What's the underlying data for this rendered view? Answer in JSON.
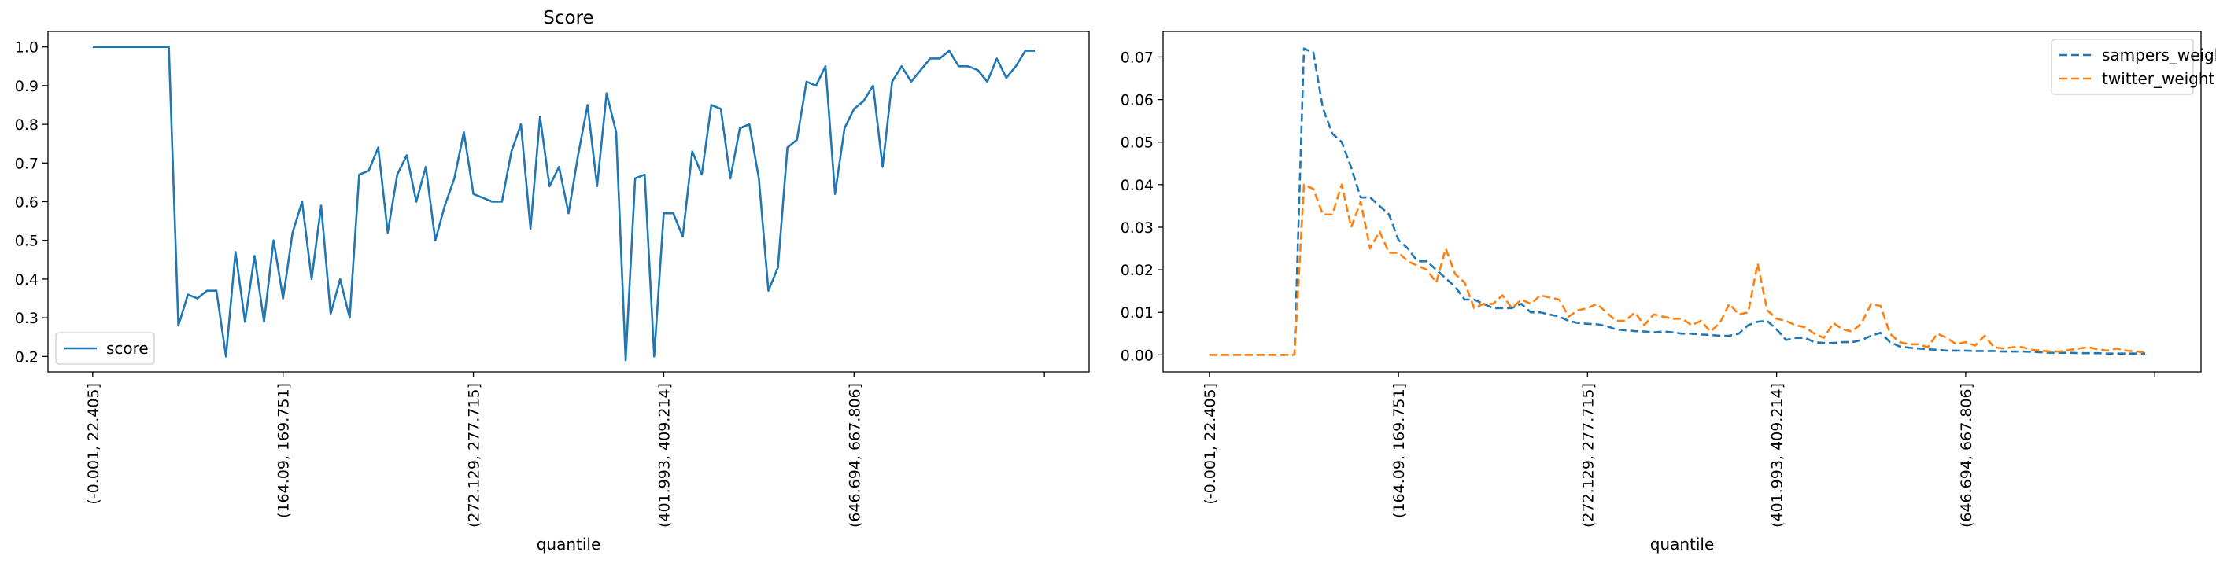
{
  "chart_data": [
    {
      "type": "line",
      "title": "Score",
      "xlabel": "quantile",
      "ylabel": "",
      "x_tick_labels": [
        "(-0.001, 22.405]",
        "(164.09, 169.751]",
        "(272.129, 277.715]",
        "(401.993, 409.214]",
        "(646.694, 667.806]",
        ""
      ],
      "x_tick_positions": [
        0,
        20,
        40,
        60,
        80,
        100
      ],
      "xlim": [
        -4.7,
        104.7
      ],
      "ylim": [
        0.16,
        1.04
      ],
      "y_ticks": [
        0.2,
        0.3,
        0.4,
        0.5,
        0.6,
        0.7,
        0.8,
        0.9,
        1.0
      ],
      "y_tick_labels": [
        "0.2",
        "0.3",
        "0.4",
        "0.5",
        "0.6",
        "0.7",
        "0.8",
        "0.9",
        "1.0"
      ],
      "legend_position": "lower-left",
      "series": [
        {
          "name": "score",
          "color": "#1f77b4",
          "style": "solid",
          "values": [
            1.0,
            1.0,
            1.0,
            1.0,
            1.0,
            1.0,
            1.0,
            1.0,
            1.0,
            0.28,
            0.36,
            0.35,
            0.37,
            0.37,
            0.2,
            0.47,
            0.29,
            0.46,
            0.29,
            0.5,
            0.35,
            0.52,
            0.6,
            0.4,
            0.59,
            0.31,
            0.4,
            0.3,
            0.67,
            0.68,
            0.74,
            0.52,
            0.67,
            0.72,
            0.6,
            0.69,
            0.5,
            0.59,
            0.66,
            0.78,
            0.62,
            0.61,
            0.6,
            0.6,
            0.73,
            0.8,
            0.53,
            0.82,
            0.64,
            0.69,
            0.57,
            0.72,
            0.85,
            0.64,
            0.88,
            0.78,
            0.19,
            0.66,
            0.67,
            0.2,
            0.57,
            0.57,
            0.51,
            0.73,
            0.67,
            0.85,
            0.84,
            0.66,
            0.79,
            0.8,
            0.66,
            0.37,
            0.43,
            0.74,
            0.76,
            0.91,
            0.9,
            0.95,
            0.62,
            0.79,
            0.84,
            0.86,
            0.9,
            0.69,
            0.91,
            0.95,
            0.91,
            0.94,
            0.97,
            0.97,
            0.99,
            0.95,
            0.95,
            0.94,
            0.91,
            0.97,
            0.92,
            0.95,
            0.99,
            0.99
          ]
        }
      ]
    },
    {
      "type": "line",
      "title": "",
      "xlabel": "quantile",
      "ylabel": "",
      "x_tick_labels": [
        "(-0.001, 22.405]",
        "(164.09, 169.751]",
        "(272.129, 277.715]",
        "(401.993, 409.214]",
        "(646.694, 667.806]",
        ""
      ],
      "x_tick_positions": [
        0,
        20,
        40,
        60,
        80,
        100
      ],
      "xlim": [
        -4.9,
        104.9
      ],
      "ylim": [
        -0.004,
        0.076
      ],
      "y_ticks": [
        0.0,
        0.01,
        0.02,
        0.03,
        0.04,
        0.05,
        0.06,
        0.07
      ],
      "y_tick_labels": [
        "0.00",
        "0.01",
        "0.02",
        "0.03",
        "0.04",
        "0.05",
        "0.06",
        "0.07"
      ],
      "legend_position": "upper-right",
      "series": [
        {
          "name": "sampers_weight",
          "color": "#1f77b4",
          "style": "dashed",
          "values": [
            0,
            0,
            0,
            0,
            0,
            0,
            0,
            0,
            0,
            0,
            0.072,
            0.071,
            0.058,
            0.052,
            0.05,
            0.044,
            0.037,
            0.037,
            0.035,
            0.033,
            0.027,
            0.025,
            0.022,
            0.022,
            0.02,
            0.018,
            0.016,
            0.013,
            0.013,
            0.012,
            0.011,
            0.011,
            0.011,
            0.012,
            0.01,
            0.01,
            0.0095,
            0.009,
            0.008,
            0.0075,
            0.0073,
            0.0072,
            0.0068,
            0.006,
            0.0058,
            0.0056,
            0.0055,
            0.0053,
            0.0055,
            0.0053,
            0.005,
            0.005,
            0.0048,
            0.0047,
            0.0045,
            0.0045,
            0.005,
            0.007,
            0.0078,
            0.008,
            0.006,
            0.0035,
            0.004,
            0.004,
            0.003,
            0.0028,
            0.0028,
            0.003,
            0.003,
            0.0035,
            0.0045,
            0.0052,
            0.003,
            0.002,
            0.0017,
            0.0015,
            0.0013,
            0.0012,
            0.001,
            0.001,
            0.001,
            0.0009,
            0.0009,
            0.0009,
            0.0008,
            0.0008,
            0.0008,
            0.0007,
            0.0006,
            0.0005,
            0.0005,
            0.0005,
            0.0004,
            0.0004,
            0.0004,
            0.0003,
            0.0003,
            0.0003,
            0.0003,
            0.0003
          ]
        },
        {
          "name": "twitter_weight",
          "color": "#ff7f0e",
          "style": "dashed",
          "values": [
            0,
            0,
            0,
            0,
            0,
            0,
            0,
            0,
            0,
            0,
            0.04,
            0.039,
            0.033,
            0.033,
            0.04,
            0.03,
            0.036,
            0.025,
            0.029,
            0.024,
            0.024,
            0.022,
            0.021,
            0.02,
            0.017,
            0.025,
            0.019,
            0.017,
            0.011,
            0.012,
            0.012,
            0.014,
            0.011,
            0.013,
            0.012,
            0.014,
            0.0135,
            0.013,
            0.009,
            0.0105,
            0.011,
            0.012,
            0.01,
            0.008,
            0.008,
            0.01,
            0.007,
            0.0095,
            0.009,
            0.0085,
            0.0085,
            0.007,
            0.008,
            0.0055,
            0.0075,
            0.012,
            0.0095,
            0.01,
            0.0215,
            0.0105,
            0.0085,
            0.008,
            0.007,
            0.0065,
            0.005,
            0.004,
            0.0075,
            0.006,
            0.0055,
            0.0075,
            0.012,
            0.0115,
            0.005,
            0.003,
            0.0025,
            0.0025,
            0.0018,
            0.005,
            0.004,
            0.0025,
            0.003,
            0.0022,
            0.0045,
            0.0018,
            0.0015,
            0.0018,
            0.0018,
            0.0012,
            0.001,
            0.0008,
            0.0008,
            0.0012,
            0.0015,
            0.0018,
            0.0013,
            0.001,
            0.0015,
            0.001,
            0.0008,
            0.0006
          ]
        }
      ]
    }
  ]
}
